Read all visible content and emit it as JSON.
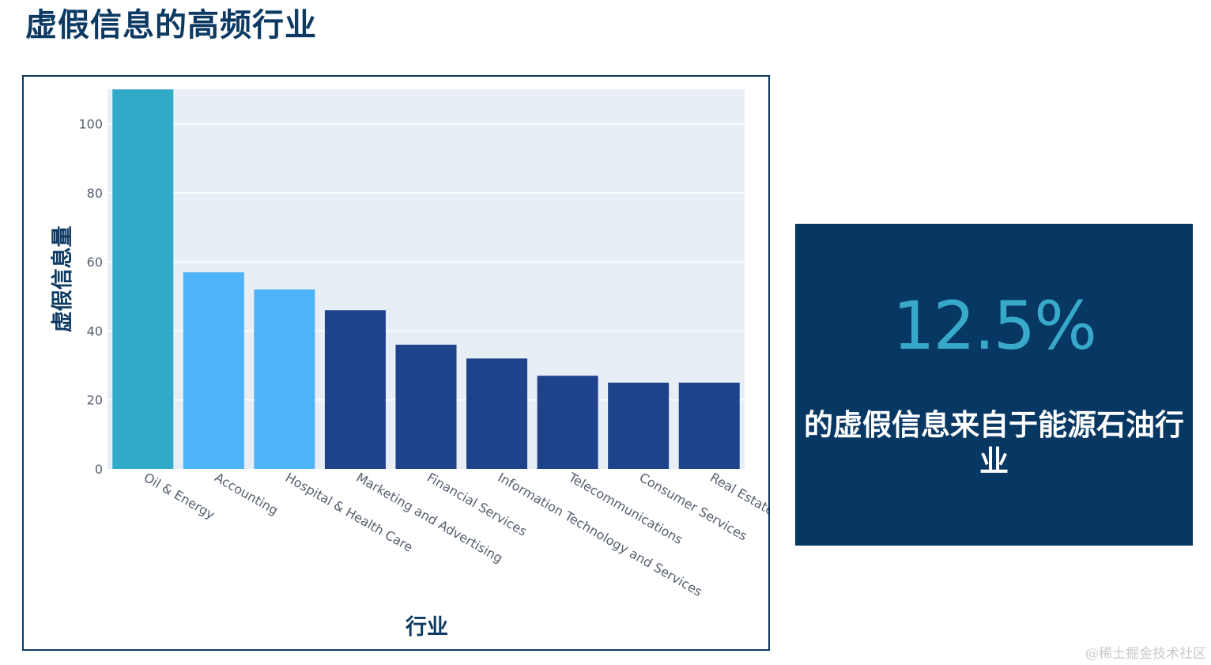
{
  "slide": {
    "title": "虚假信息的高频行业",
    "watermark": "@稀土掘金技术社区"
  },
  "highlight": {
    "value": "12.5%",
    "description": "的虚假信息来自于能源石油行业",
    "value_color": "#38a9c9",
    "background_color": "#073763"
  },
  "chart_data": {
    "type": "bar",
    "title": "",
    "xlabel": "行业",
    "ylabel": "虚假信息量",
    "ylim": [
      0,
      110
    ],
    "yticks": [
      0,
      20,
      40,
      60,
      80,
      100
    ],
    "grid": true,
    "legend": "none",
    "categories": [
      "Oil & Energy",
      "Accounting",
      "Hospital & Health Care",
      "Marketing and Advertising",
      "Financial Services",
      "Information Technology and Services",
      "Telecommunications",
      "Consumer Services",
      "Real Estate"
    ],
    "values": [
      110,
      57,
      52,
      46,
      36,
      32,
      27,
      25,
      25
    ],
    "colors": [
      "#30aac8",
      "#4eb3f7",
      "#4eb3f7",
      "#1f438a",
      "#1f438a",
      "#1f438a",
      "#1f438a",
      "#1f438a",
      "#1f438a"
    ],
    "plot_background": "#e8eef6"
  }
}
